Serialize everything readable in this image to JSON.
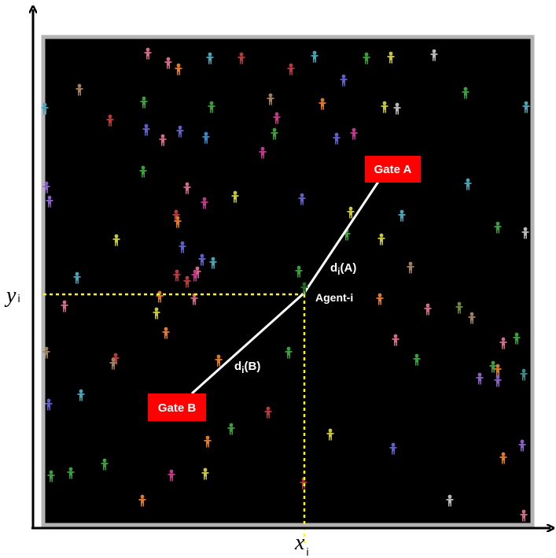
{
  "gate_a": {
    "label": "Gate A",
    "fill": "#ff0000"
  },
  "gate_b": {
    "label": "Gate B",
    "fill": "#ff0000"
  },
  "agent": {
    "label": "Agent-i"
  },
  "distance_a": {
    "main": "d",
    "sub": "i",
    "suffix": "(A)"
  },
  "distance_b": {
    "main": "d",
    "sub": "i",
    "suffix": "(B)"
  },
  "axes": {
    "y_var": "y",
    "y_sub": "i",
    "x_var": "x",
    "x_sub": "i"
  },
  "colors": {
    "field": "#000000",
    "frame": "#b3b3b3",
    "guide": "#ffff00",
    "path": "#ffffff",
    "gate": "#ff0000"
  }
}
